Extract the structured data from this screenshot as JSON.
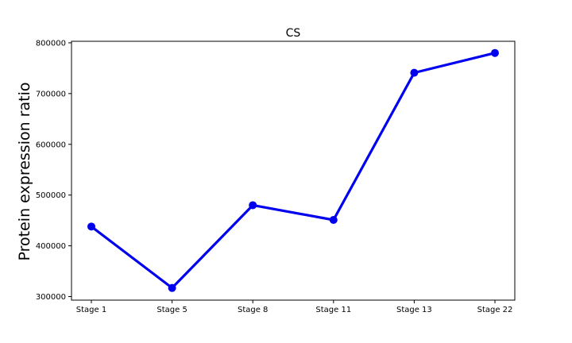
{
  "chart_data": {
    "type": "line",
    "title": "CS",
    "xlabel": "",
    "ylabel": "Protein expression ratio",
    "categories": [
      "Stage 1",
      "Stage 5",
      "Stage 8",
      "Stage 11",
      "Stage 13",
      "Stage 22"
    ],
    "series": [
      {
        "values": [
          438000,
          317000,
          480000,
          451000,
          741000,
          780000
        ],
        "color": "#0000ee"
      }
    ],
    "ylim": [
      293000,
      803000
    ],
    "yticks": [
      300000,
      400000,
      500000,
      600000,
      700000,
      800000
    ],
    "ytick_labels": [
      "300000",
      "400000",
      "500000",
      "600000",
      "700000",
      "800000"
    ],
    "grid": false,
    "legend": "none"
  }
}
